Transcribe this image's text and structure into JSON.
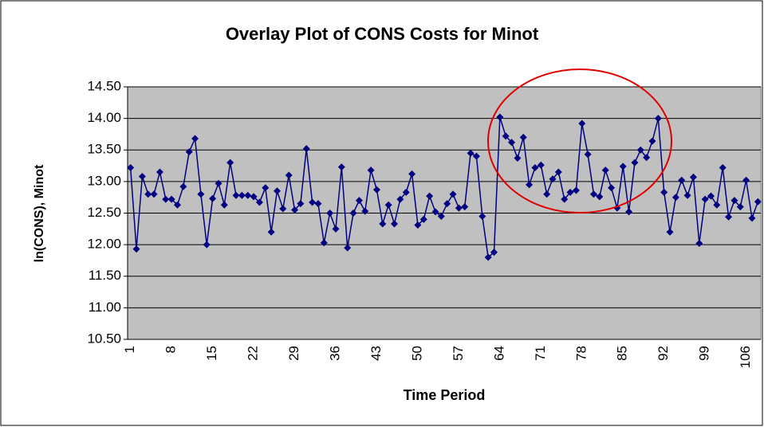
{
  "chart_data": {
    "type": "line",
    "title": "Overlay Plot of CONS Costs for Minot",
    "x_label": "Time Period",
    "y_label": "ln(CONS), Minot",
    "color": "#000080",
    "categories": [
      "1",
      null,
      null,
      null,
      null,
      null,
      null,
      "8",
      null,
      null,
      null,
      null,
      null,
      null,
      "15",
      null,
      null,
      null,
      null,
      null,
      null,
      "22",
      null,
      null,
      null,
      null,
      null,
      null,
      "29",
      null,
      null,
      null,
      null,
      null,
      null,
      "36",
      null,
      null,
      null,
      null,
      null,
      null,
      "43",
      null,
      null,
      null,
      null,
      null,
      null,
      "50",
      null,
      null,
      null,
      null,
      null,
      null,
      "57",
      null,
      null,
      null,
      null,
      null,
      null,
      "64",
      null,
      null,
      null,
      null,
      null,
      null,
      "71",
      null,
      null,
      null,
      null,
      null,
      null,
      "78",
      null,
      null,
      null,
      null,
      null,
      null,
      "85",
      null,
      null,
      null,
      null,
      null,
      null,
      "92",
      null,
      null,
      null,
      null,
      null,
      null,
      "99",
      null,
      null,
      null,
      null,
      null,
      null,
      "106",
      null,
      null
    ],
    "values": [
      13.22,
      11.93,
      13.08,
      12.8,
      12.8,
      13.15,
      12.72,
      12.72,
      12.63,
      12.92,
      13.47,
      13.68,
      12.8,
      12.0,
      12.73,
      12.97,
      12.63,
      13.3,
      12.78,
      12.78,
      12.78,
      12.76,
      12.67,
      12.9,
      12.2,
      12.85,
      12.57,
      13.1,
      12.55,
      12.65,
      13.52,
      12.67,
      12.65,
      12.03,
      12.5,
      12.25,
      13.23,
      11.95,
      12.5,
      12.7,
      12.53,
      13.18,
      12.87,
      12.33,
      12.63,
      12.33,
      12.72,
      12.83,
      13.12,
      12.31,
      12.4,
      12.77,
      12.52,
      12.45,
      12.65,
      12.8,
      12.58,
      12.6,
      13.45,
      13.4,
      12.45,
      11.8,
      11.88,
      14.02,
      13.72,
      13.62,
      13.37,
      13.7,
      12.95,
      13.22,
      13.26,
      12.8,
      13.04,
      13.15,
      12.72,
      12.83,
      12.86,
      13.92,
      13.43,
      12.8,
      12.76,
      13.18,
      12.9,
      12.58,
      13.24,
      12.52,
      13.3,
      13.5,
      13.38,
      13.64,
      14.0,
      12.83,
      12.2,
      12.75,
      13.02,
      12.78,
      13.07,
      12.02,
      12.72,
      12.77,
      12.63,
      13.22,
      12.44,
      12.7,
      12.6,
      13.02,
      12.42,
      12.68
    ],
    "ylim": [
      10.5,
      14.5
    ],
    "yticks": [
      {
        "value": 10.5,
        "label": "10.50"
      },
      {
        "value": 11,
        "label": "11.00"
      },
      {
        "value": 11.5,
        "label": "11.50"
      },
      {
        "value": 12,
        "label": "12.00"
      },
      {
        "value": 12.5,
        "label": "12.50"
      },
      {
        "value": 13,
        "label": "13.00"
      },
      {
        "value": 13.5,
        "label": "13.50"
      },
      {
        "value": 14,
        "label": "14.00"
      },
      {
        "value": 14.5,
        "label": "14.50"
      }
    ],
    "grid": true
  }
}
